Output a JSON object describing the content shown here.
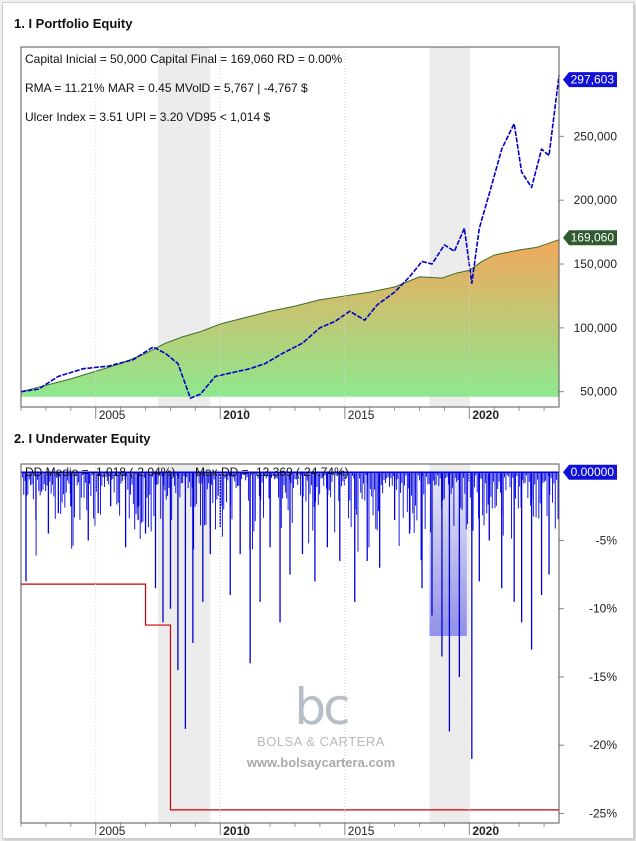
{
  "chart_data": [
    {
      "type": "area",
      "title": "1. I Portfolio Equity",
      "stats": [
        "Capital Inicial = 50,000  Capital Final = 169,060   RD = 0.00%",
        "RMA = 11.21%   MAR = 0.45   MVolD = 5,767 | -4,767 $",
        "Ulcer Index = 3.51   UPI = 3.20   VD95 < 1,014 $"
      ],
      "x_ticks": [
        "2005",
        "2010",
        "2015",
        "2020"
      ],
      "y_ticks": [
        "50,000",
        "100,000",
        "150,000",
        "200,000",
        "250,000"
      ],
      "ylim": [
        38000,
        320000
      ],
      "xlim": [
        2002.0,
        2023.6
      ],
      "shaded_periods": [
        [
          2007.5,
          2009.6
        ],
        [
          2018.4,
          2020.0
        ]
      ],
      "series": [
        {
          "name": "",
          "style": "area",
          "last_label": "169,060",
          "x": [
            2002.0,
            2003,
            2004,
            2005,
            2006,
            2007,
            2007.8,
            2008.5,
            2009.2,
            2010,
            2011,
            2012,
            2013,
            2014,
            2015,
            2016,
            2017,
            2018,
            2018.9,
            2019.5,
            2020,
            2020.5,
            2021,
            2022,
            2022.7,
            2023.6
          ],
          "values": [
            50000,
            55000,
            60000,
            66000,
            72000,
            80000,
            88000,
            93000,
            97000,
            103000,
            108000,
            113000,
            117000,
            122000,
            125000,
            128000,
            132000,
            140000,
            139000,
            143000,
            145000,
            152000,
            157000,
            161000,
            163000,
            169060
          ]
        },
        {
          "name": "",
          "style": "line",
          "last_label": "297,603",
          "x": [
            2002.0,
            2002.7,
            2003.5,
            2004.5,
            2005.5,
            2006.5,
            2007.3,
            2007.8,
            2008.3,
            2008.8,
            2009.2,
            2009.8,
            2010.5,
            2011.2,
            2011.8,
            2012.5,
            2013.3,
            2014.0,
            2014.6,
            2015.2,
            2015.8,
            2016.3,
            2017.0,
            2017.6,
            2018.1,
            2018.5,
            2019.0,
            2019.4,
            2019.8,
            2020.1,
            2020.4,
            2020.8,
            2021.3,
            2021.8,
            2022.1,
            2022.5,
            2022.9,
            2023.2,
            2023.6
          ],
          "values": [
            50000,
            52000,
            62000,
            68000,
            70000,
            75000,
            85000,
            80000,
            72000,
            45000,
            48000,
            62000,
            65000,
            68000,
            72000,
            80000,
            88000,
            100000,
            105000,
            113000,
            106000,
            118000,
            128000,
            140000,
            152000,
            150000,
            165000,
            160000,
            178000,
            135000,
            178000,
            205000,
            240000,
            260000,
            222000,
            210000,
            240000,
            235000,
            297603
          ]
        }
      ]
    },
    {
      "type": "area",
      "title": "2. I Underwater Equity",
      "stats": [
        "DD Medio = -1,018 (-2.04%)",
        "Max DD = -12,369 (-24.74%)"
      ],
      "x_ticks": [
        "2005",
        "2010",
        "2015",
        "2020"
      ],
      "y_ticks": [
        "-5%",
        "-10%",
        "-15%",
        "-20%",
        "-25%"
      ],
      "ylim": [
        -25.7,
        0.6
      ],
      "xlim": [
        2002.0,
        2023.6
      ],
      "shaded_periods": [
        [
          2007.5,
          2009.6
        ],
        [
          2018.4,
          2020.0
        ]
      ],
      "last_label": "0.00000",
      "max_dd_steps": {
        "x": [
          2002.0,
          2007.0,
          2007.0,
          2008.0,
          2008.0,
          2023.6
        ],
        "values": [
          -8.2,
          -8.2,
          -11.2,
          -11.2,
          -24.74,
          -24.74
        ]
      },
      "spikes": {
        "x": [
          2002.2,
          2002.6,
          2003.1,
          2003.5,
          2004.0,
          2004.7,
          2005.1,
          2005.6,
          2006.2,
          2006.7,
          2007.0,
          2007.4,
          2007.7,
          2008.0,
          2008.3,
          2008.6,
          2008.9,
          2009.3,
          2009.6,
          2010.0,
          2010.4,
          2010.8,
          2011.2,
          2011.6,
          2012.0,
          2012.4,
          2012.8,
          2013.3,
          2013.8,
          2014.3,
          2014.8,
          2015.4,
          2015.9,
          2016.4,
          2017.0,
          2017.6,
          2018.1,
          2018.5,
          2018.9,
          2019.2,
          2019.6,
          2020.1,
          2020.4,
          2020.8,
          2021.3,
          2021.8,
          2022.1,
          2022.5,
          2022.9,
          2023.2
        ],
        "values": [
          -8.0,
          -3.5,
          -4.5,
          -3.0,
          -2.5,
          -5.0,
          -3.0,
          -2.5,
          -5.5,
          -3.5,
          -4.5,
          -8.5,
          -11.0,
          -10.0,
          -14.5,
          -18.8,
          -12.5,
          -9.5,
          -6.0,
          -4.0,
          -9.0,
          -6.0,
          -14.0,
          -9.5,
          -5.5,
          -11.0,
          -7.5,
          -6.0,
          -8.0,
          -5.5,
          -6.5,
          -9.5,
          -6.5,
          -7.0,
          -3.5,
          -4.5,
          -8.5,
          -10.5,
          -13.5,
          -19.0,
          -15.0,
          -21.0,
          -8.0,
          -5.0,
          -8.5,
          -9.5,
          -11.0,
          -13.0,
          -9.0,
          -7.5
        ]
      }
    }
  ],
  "watermark": {
    "logo": "bc",
    "name": "BOLSA & CARTERA",
    "url": "www.bolsaycartera.com"
  },
  "colors": {
    "equity_line": "#0000c8",
    "equity_area_top": "#f3a75b",
    "equity_area_bottom": "#8ee88e",
    "equity_area_stroke": "#3a6e2a",
    "underwater": "#0000e0",
    "max_dd_line": "#cc0000",
    "shade": "#ececec",
    "dark_label": "#2f5a2f",
    "blue_label": "#1010d8"
  }
}
